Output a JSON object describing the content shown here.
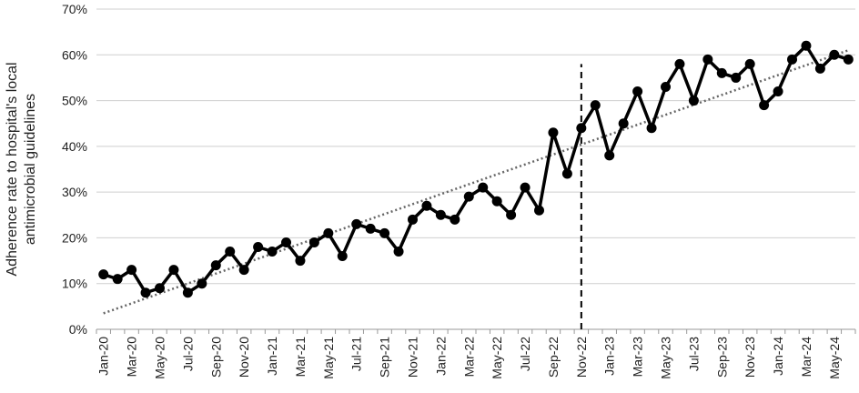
{
  "chart_data": {
    "type": "line",
    "ylabel": [
      "Adherence rate to hospital's local",
      "antimicrobial guidelines"
    ],
    "categories": [
      "Jan-20",
      null,
      "Mar-20",
      null,
      "May-20",
      null,
      "Jul-20",
      null,
      "Sep-20",
      null,
      "Nov-20",
      null,
      "Jan-21",
      null,
      "Mar-21",
      null,
      "May-21",
      null,
      "Jul-21",
      null,
      "Sep-21",
      null,
      "Nov-21",
      null,
      "Jan-22",
      null,
      "Mar-22",
      null,
      "May-22",
      null,
      "Jul-22",
      null,
      "Sep-22",
      null,
      "Nov-22",
      null,
      "Jan-23",
      null,
      "Mar-23",
      null,
      "May-23",
      null,
      "Jul-23",
      null,
      "Sep-23",
      null,
      "Nov-23",
      null,
      "Jan-24",
      null,
      "Mar-24",
      null,
      "May-24",
      null
    ],
    "series": [
      {
        "color": "#000000",
        "values": [
          12,
          11,
          13,
          8,
          9,
          13,
          8,
          10,
          14,
          17,
          13,
          18,
          17,
          19,
          15,
          19,
          21,
          16,
          23,
          22,
          21,
          17,
          24,
          27,
          25,
          24,
          29,
          31,
          28,
          25,
          31,
          26,
          43,
          34,
          44,
          49,
          38,
          45,
          52,
          44,
          53,
          58,
          50,
          59,
          56,
          55,
          58,
          49,
          52,
          59,
          62,
          57,
          60,
          59
        ]
      }
    ],
    "trend_line": {
      "color": "#666666",
      "values": [
        3.5,
        61
      ]
    },
    "reference_line": {
      "x": "Nov-22",
      "top": 58,
      "color": "#000000"
    },
    "ylim": [
      0,
      70
    ],
    "yticks": [
      {
        "value": 0,
        "label": "0%"
      },
      {
        "value": 10,
        "label": "10%"
      },
      {
        "value": 20,
        "label": "20%"
      },
      {
        "value": 30,
        "label": "30%"
      },
      {
        "value": 40,
        "label": "40%"
      },
      {
        "value": 50,
        "label": "50%"
      },
      {
        "value": 60,
        "label": "60%"
      },
      {
        "value": 70,
        "label": "70%"
      }
    ],
    "grid": true
  }
}
